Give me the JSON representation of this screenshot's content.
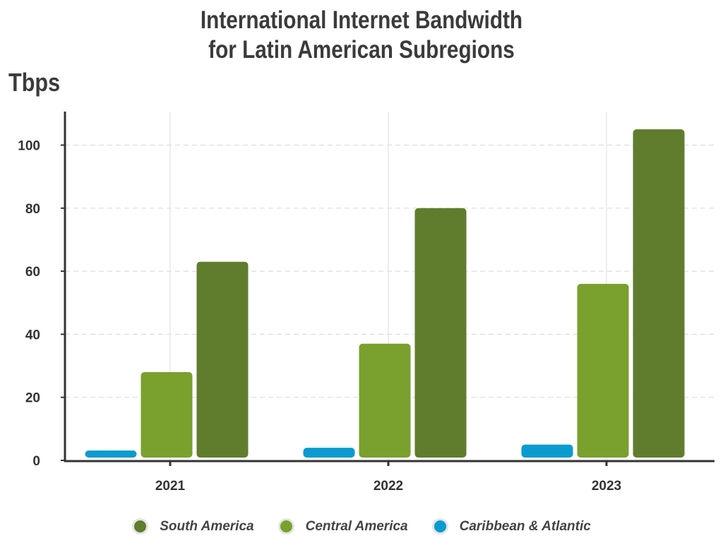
{
  "chart_data": {
    "type": "bar",
    "title_line1": "International Internet Bandwidth",
    "title_line2": "for Latin American Subregions",
    "ylabel": "Tbps",
    "xlabel": "",
    "categories": [
      "2021",
      "2022",
      "2023"
    ],
    "ylim": [
      0,
      110
    ],
    "yticks": [
      0,
      20,
      40,
      60,
      80,
      100
    ],
    "grid": "horizontal dashed",
    "legend_position": "bottom",
    "series": [
      {
        "name": "Caribbean & Atlantic",
        "color": "#0b9bcf",
        "values": [
          3,
          4,
          5
        ]
      },
      {
        "name": "Central America",
        "color": "#7aa02e",
        "values": [
          28,
          37,
          56
        ]
      },
      {
        "name": "South America",
        "color": "#5f7d2d",
        "values": [
          63,
          80,
          105
        ]
      }
    ],
    "legend_order": [
      2,
      1,
      0
    ]
  }
}
